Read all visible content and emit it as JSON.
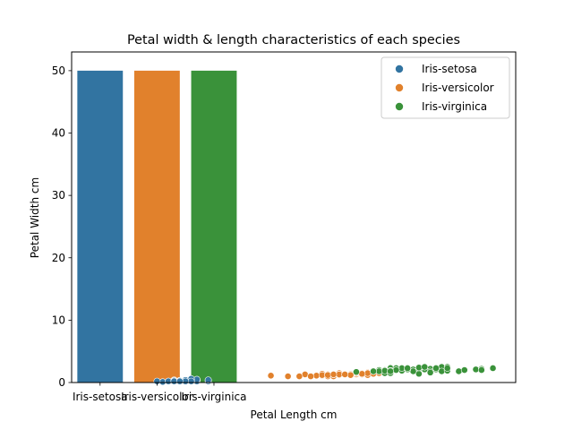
{
  "chart_data": {
    "type": "bar",
    "title": "Petal width & length characteristics of each species",
    "xlabel": "Petal Length cm",
    "ylabel": "Petal Width cm",
    "ylim": [
      0,
      53
    ],
    "yticks": [
      0,
      10,
      20,
      30,
      40,
      50
    ],
    "categories": [
      "Iris-setosa",
      "Iris-versicolor",
      "Iris-virginica"
    ],
    "bars": {
      "values": [
        50,
        50,
        50
      ],
      "colors": [
        "#3274a1",
        "#e1812c",
        "#3a923a"
      ]
    },
    "scatter": {
      "x_range": [
        -0.5,
        7.3
      ],
      "series": [
        {
          "name": "Iris-setosa",
          "color": "#3274a1",
          "points": [
            [
              1.4,
              0.2
            ],
            [
              1.4,
              0.2
            ],
            [
              1.3,
              0.2
            ],
            [
              1.5,
              0.2
            ],
            [
              1.4,
              0.2
            ],
            [
              1.7,
              0.4
            ],
            [
              1.4,
              0.3
            ],
            [
              1.5,
              0.2
            ],
            [
              1.4,
              0.2
            ],
            [
              1.5,
              0.1
            ],
            [
              1.5,
              0.2
            ],
            [
              1.6,
              0.2
            ],
            [
              1.4,
              0.1
            ],
            [
              1.1,
              0.1
            ],
            [
              1.2,
              0.2
            ],
            [
              1.5,
              0.4
            ],
            [
              1.3,
              0.4
            ],
            [
              1.4,
              0.3
            ],
            [
              1.7,
              0.3
            ],
            [
              1.5,
              0.3
            ],
            [
              1.7,
              0.2
            ],
            [
              1.5,
              0.4
            ],
            [
              1.0,
              0.2
            ],
            [
              1.7,
              0.5
            ],
            [
              1.9,
              0.2
            ],
            [
              1.6,
              0.2
            ],
            [
              1.6,
              0.4
            ],
            [
              1.5,
              0.2
            ],
            [
              1.4,
              0.2
            ],
            [
              1.6,
              0.2
            ],
            [
              1.6,
              0.2
            ],
            [
              1.5,
              0.4
            ],
            [
              1.5,
              0.1
            ],
            [
              1.4,
              0.2
            ],
            [
              1.5,
              0.1
            ],
            [
              1.2,
              0.2
            ],
            [
              1.3,
              0.2
            ],
            [
              1.5,
              0.1
            ],
            [
              1.3,
              0.2
            ],
            [
              1.5,
              0.2
            ],
            [
              1.3,
              0.3
            ],
            [
              1.3,
              0.3
            ],
            [
              1.3,
              0.2
            ],
            [
              1.6,
              0.6
            ],
            [
              1.9,
              0.4
            ],
            [
              1.4,
              0.3
            ],
            [
              1.6,
              0.2
            ],
            [
              1.4,
              0.2
            ],
            [
              1.5,
              0.2
            ],
            [
              1.4,
              0.2
            ]
          ]
        },
        {
          "name": "Iris-versicolor",
          "color": "#e1812c",
          "points": [
            [
              4.7,
              1.4
            ],
            [
              4.5,
              1.5
            ],
            [
              4.9,
              1.5
            ],
            [
              4.0,
              1.3
            ],
            [
              4.6,
              1.5
            ],
            [
              4.5,
              1.3
            ],
            [
              4.7,
              1.6
            ],
            [
              3.3,
              1.0
            ],
            [
              4.6,
              1.3
            ],
            [
              3.9,
              1.4
            ],
            [
              3.5,
              1.0
            ],
            [
              4.2,
              1.5
            ],
            [
              4.0,
              1.0
            ],
            [
              4.7,
              1.4
            ],
            [
              3.6,
              1.3
            ],
            [
              4.4,
              1.4
            ],
            [
              4.5,
              1.5
            ],
            [
              4.1,
              1.0
            ],
            [
              4.5,
              1.5
            ],
            [
              3.9,
              1.1
            ],
            [
              4.8,
              1.8
            ],
            [
              4.0,
              1.3
            ],
            [
              4.9,
              1.5
            ],
            [
              4.7,
              1.2
            ],
            [
              4.3,
              1.3
            ],
            [
              4.4,
              1.4
            ],
            [
              4.8,
              1.4
            ],
            [
              5.0,
              1.7
            ],
            [
              4.5,
              1.5
            ],
            [
              3.5,
              1.0
            ],
            [
              3.8,
              1.1
            ],
            [
              3.7,
              1.0
            ],
            [
              3.9,
              1.2
            ],
            [
              5.1,
              1.6
            ],
            [
              4.5,
              1.5
            ],
            [
              4.5,
              1.6
            ],
            [
              4.7,
              1.5
            ],
            [
              4.4,
              1.3
            ],
            [
              4.1,
              1.3
            ],
            [
              4.0,
              1.3
            ],
            [
              4.4,
              1.2
            ],
            [
              4.6,
              1.4
            ],
            [
              4.0,
              1.2
            ],
            [
              3.3,
              1.0
            ],
            [
              4.2,
              1.3
            ],
            [
              4.2,
              1.2
            ],
            [
              4.2,
              1.3
            ],
            [
              4.3,
              1.3
            ],
            [
              3.0,
              1.1
            ],
            [
              4.1,
              1.3
            ]
          ]
        },
        {
          "name": "Iris-virginica",
          "color": "#3a923a",
          "points": [
            [
              6.0,
              2.5
            ],
            [
              5.1,
              1.9
            ],
            [
              5.9,
              2.1
            ],
            [
              5.6,
              1.8
            ],
            [
              5.8,
              2.2
            ],
            [
              6.6,
              2.1
            ],
            [
              4.5,
              1.7
            ],
            [
              6.3,
              1.8
            ],
            [
              5.8,
              1.8
            ],
            [
              6.1,
              2.5
            ],
            [
              5.1,
              2.0
            ],
            [
              5.3,
              1.9
            ],
            [
              5.5,
              2.1
            ],
            [
              5.0,
              2.0
            ],
            [
              5.1,
              2.4
            ],
            [
              5.3,
              2.3
            ],
            [
              5.5,
              1.8
            ],
            [
              6.7,
              2.2
            ],
            [
              6.9,
              2.3
            ],
            [
              5.0,
              1.5
            ],
            [
              5.7,
              2.3
            ],
            [
              4.9,
              2.0
            ],
            [
              6.7,
              2.0
            ],
            [
              4.9,
              1.8
            ],
            [
              5.7,
              2.1
            ],
            [
              6.0,
              1.8
            ],
            [
              4.8,
              1.8
            ],
            [
              4.9,
              1.8
            ],
            [
              5.6,
              2.1
            ],
            [
              5.8,
              1.6
            ],
            [
              6.1,
              1.9
            ],
            [
              6.4,
              2.0
            ],
            [
              5.6,
              2.2
            ],
            [
              5.1,
              1.5
            ],
            [
              5.6,
              1.4
            ],
            [
              6.1,
              2.3
            ],
            [
              5.6,
              2.4
            ],
            [
              5.5,
              1.8
            ],
            [
              4.8,
              1.8
            ],
            [
              5.4,
              2.1
            ],
            [
              5.6,
              2.4
            ],
            [
              5.1,
              2.3
            ],
            [
              5.1,
              1.9
            ],
            [
              5.9,
              2.3
            ],
            [
              5.7,
              2.5
            ],
            [
              5.2,
              2.3
            ],
            [
              5.0,
              1.9
            ],
            [
              5.2,
              2.0
            ],
            [
              5.4,
              2.3
            ],
            [
              5.1,
              1.8
            ]
          ]
        }
      ]
    },
    "legend": {
      "placement": "top-right",
      "entries": [
        "Iris-setosa",
        "Iris-versicolor",
        "Iris-virginica"
      ]
    },
    "grid": false
  }
}
